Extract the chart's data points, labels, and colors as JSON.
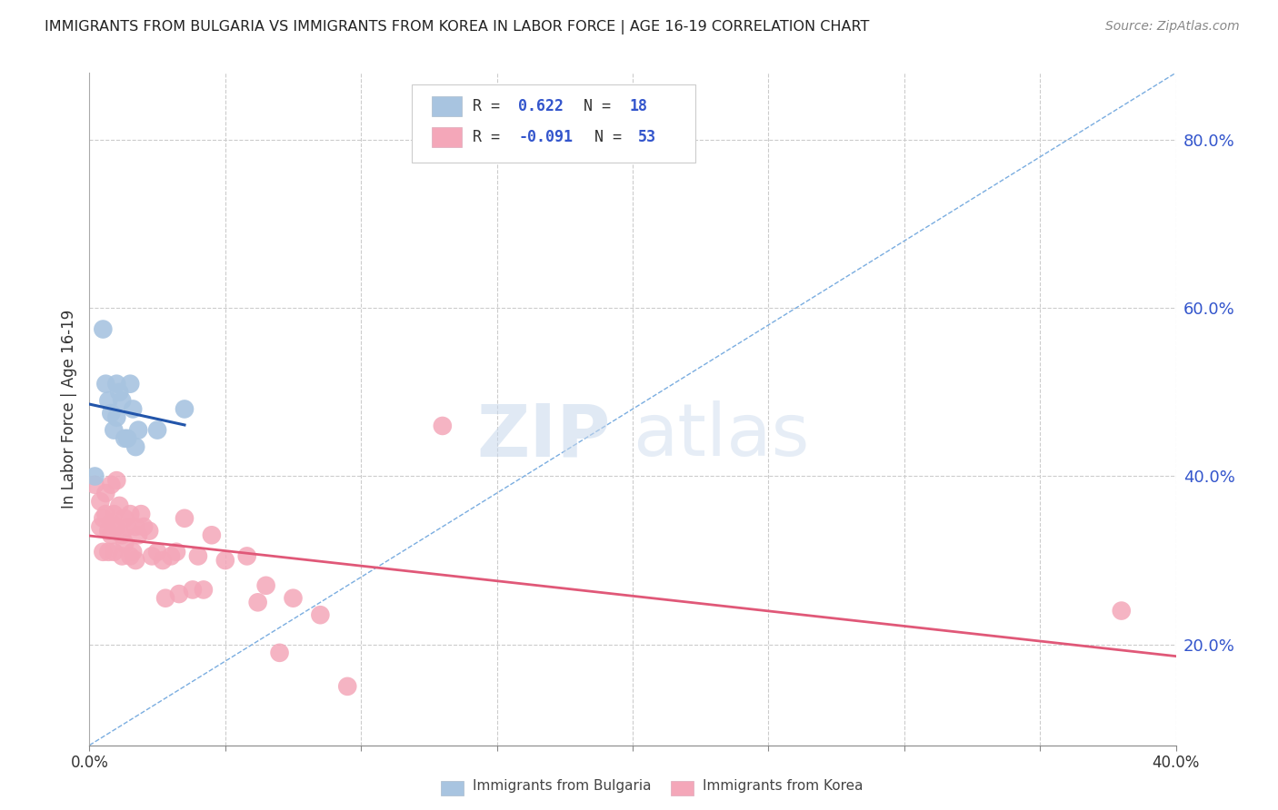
{
  "title": "IMMIGRANTS FROM BULGARIA VS IMMIGRANTS FROM KOREA IN LABOR FORCE | AGE 16-19 CORRELATION CHART",
  "source": "Source: ZipAtlas.com",
  "ylabel": "In Labor Force | Age 16-19",
  "x_min": 0.0,
  "x_max": 0.4,
  "y_min": 0.08,
  "y_max": 0.88,
  "y_ticks": [
    0.2,
    0.4,
    0.6,
    0.8
  ],
  "x_ticks": [
    0.0,
    0.05,
    0.1,
    0.15,
    0.2,
    0.25,
    0.3,
    0.35,
    0.4
  ],
  "watermark_zip": "ZIP",
  "watermark_atlas": "atlas",
  "bulgaria_color": "#a8c4e0",
  "korea_color": "#f4a7b9",
  "bulgaria_line_color": "#2255aa",
  "korea_line_color": "#e05878",
  "ref_line_color": "#7aade0",
  "bulgaria_x": [
    0.002,
    0.005,
    0.006,
    0.007,
    0.008,
    0.009,
    0.01,
    0.01,
    0.011,
    0.012,
    0.013,
    0.014,
    0.015,
    0.016,
    0.017,
    0.018,
    0.025,
    0.035
  ],
  "bulgaria_y": [
    0.4,
    0.575,
    0.51,
    0.49,
    0.475,
    0.455,
    0.47,
    0.51,
    0.5,
    0.49,
    0.445,
    0.445,
    0.51,
    0.48,
    0.435,
    0.455,
    0.455,
    0.48
  ],
  "korea_x": [
    0.002,
    0.004,
    0.004,
    0.005,
    0.005,
    0.006,
    0.006,
    0.007,
    0.007,
    0.008,
    0.008,
    0.008,
    0.009,
    0.009,
    0.01,
    0.01,
    0.011,
    0.012,
    0.012,
    0.013,
    0.013,
    0.014,
    0.015,
    0.015,
    0.016,
    0.017,
    0.017,
    0.018,
    0.019,
    0.02,
    0.022,
    0.023,
    0.025,
    0.027,
    0.028,
    0.03,
    0.032,
    0.033,
    0.035,
    0.038,
    0.04,
    0.042,
    0.045,
    0.05,
    0.058,
    0.062,
    0.065,
    0.07,
    0.075,
    0.085,
    0.095,
    0.13,
    0.38
  ],
  "korea_y": [
    0.39,
    0.37,
    0.34,
    0.35,
    0.31,
    0.38,
    0.355,
    0.335,
    0.31,
    0.345,
    0.33,
    0.39,
    0.31,
    0.355,
    0.34,
    0.395,
    0.365,
    0.33,
    0.305,
    0.32,
    0.35,
    0.34,
    0.355,
    0.305,
    0.31,
    0.34,
    0.3,
    0.33,
    0.355,
    0.34,
    0.335,
    0.305,
    0.31,
    0.3,
    0.255,
    0.305,
    0.31,
    0.26,
    0.35,
    0.265,
    0.305,
    0.265,
    0.33,
    0.3,
    0.305,
    0.25,
    0.27,
    0.19,
    0.255,
    0.235,
    0.15,
    0.46,
    0.24
  ]
}
